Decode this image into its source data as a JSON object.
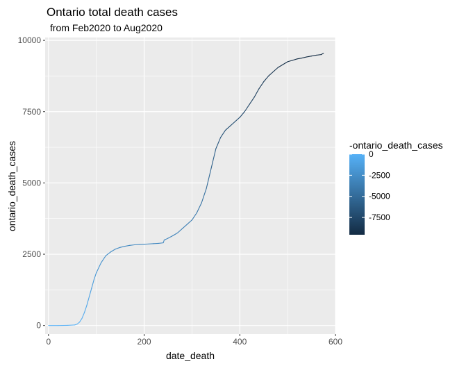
{
  "chart_data": {
    "type": "line",
    "title": "Ontario total death cases",
    "subtitle": "from Feb2020 to Aug2020",
    "xlabel": "date_death",
    "ylabel": "ontario_death_cases",
    "xlim": [
      -7,
      600
    ],
    "ylim": [
      -300,
      10100
    ],
    "x_ticks": [
      0,
      200,
      400,
      600
    ],
    "y_ticks": [
      0,
      2500,
      5000,
      7500,
      10000
    ],
    "x_tick_labels": [
      "0",
      "200",
      "400",
      "600"
    ],
    "y_tick_labels": [
      "0",
      "2500",
      "5000",
      "7500",
      "10000"
    ],
    "grid": true,
    "series": [
      {
        "x": [
          0,
          20,
          40,
          55,
          60,
          65,
          70,
          75,
          80,
          85,
          90,
          95,
          100,
          110,
          120,
          130,
          140,
          150,
          160,
          170,
          180,
          190,
          200,
          210,
          220,
          230,
          240,
          242,
          245,
          250,
          260,
          270,
          280,
          290,
          300,
          310,
          320,
          330,
          340,
          350,
          360,
          370,
          380,
          390,
          400,
          410,
          420,
          430,
          440,
          450,
          460,
          470,
          480,
          490,
          500,
          510,
          520,
          530,
          540,
          550,
          560,
          570,
          575
        ],
        "y": [
          0,
          0,
          5,
          20,
          50,
          120,
          250,
          450,
          700,
          1000,
          1300,
          1600,
          1850,
          2200,
          2450,
          2580,
          2680,
          2740,
          2780,
          2810,
          2830,
          2840,
          2850,
          2860,
          2870,
          2880,
          2900,
          3000,
          3020,
          3060,
          3150,
          3250,
          3400,
          3550,
          3700,
          3950,
          4300,
          4800,
          5500,
          6200,
          6600,
          6850,
          7000,
          7150,
          7300,
          7500,
          7750,
          8000,
          8300,
          8550,
          8750,
          8900,
          9050,
          9150,
          9250,
          9300,
          9350,
          9380,
          9420,
          9450,
          9480,
          9500,
          9550
        ]
      }
    ],
    "color_legend": {
      "title": "-ontario_death_cases",
      "ticks": [
        0,
        -2500,
        -5000,
        -7500
      ],
      "tick_labels": [
        "0",
        "-2500",
        "-5000",
        "-7500"
      ],
      "range": [
        -9550,
        0
      ],
      "color_low": "#132b43",
      "color_high": "#56b1f7",
      "placement": "right"
    },
    "panel_background": "#ebebeb",
    "grid_color": "#ffffff"
  }
}
